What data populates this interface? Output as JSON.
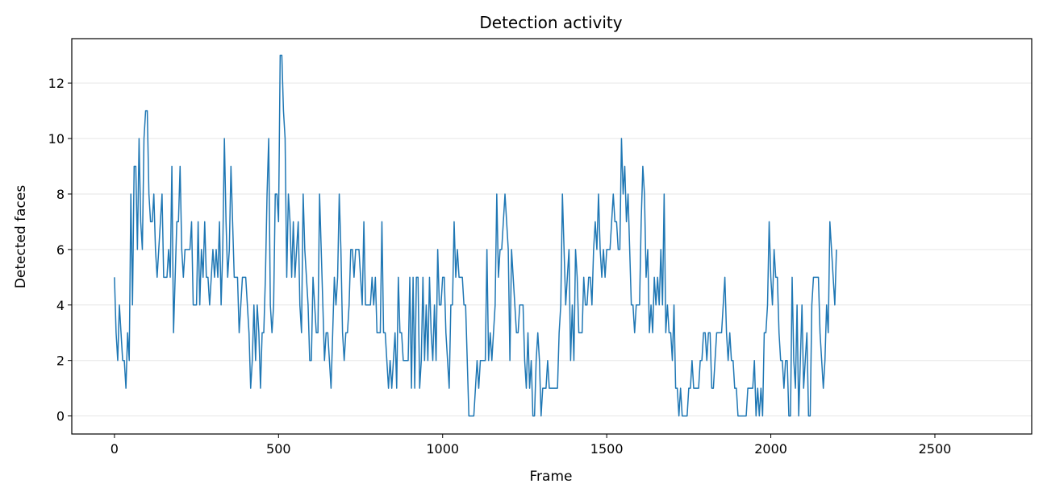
{
  "chart_data": {
    "type": "line",
    "title": "Detection activity",
    "xlabel": "Frame",
    "ylabel": "Detected faces",
    "xlim": [
      -130,
      2795
    ],
    "ylim": [
      -0.65,
      13.6
    ],
    "xticks": [
      0,
      500,
      1000,
      1500,
      2000,
      2500
    ],
    "yticks": [
      0,
      2,
      4,
      6,
      8,
      10,
      12
    ],
    "grid": "horizontal",
    "line_color": "#1f77b4",
    "series": [
      {
        "x_start": 0,
        "x_step": 5,
        "values": [
          5,
          3,
          2,
          4,
          3,
          2,
          2,
          1,
          3,
          2,
          8,
          4,
          9,
          9,
          6,
          10,
          7,
          6,
          10,
          11,
          11,
          8,
          7,
          7,
          8,
          6,
          5,
          6,
          7,
          8,
          5,
          5,
          5,
          6,
          5,
          9,
          3,
          5,
          7,
          7,
          9,
          6,
          5,
          6,
          6,
          6,
          6,
          7,
          4,
          4,
          4,
          7,
          4,
          6,
          5,
          7,
          5,
          5,
          4,
          5,
          6,
          5,
          6,
          5,
          7,
          4,
          6,
          10,
          7,
          5,
          6,
          9,
          7,
          5,
          5,
          5,
          3,
          4,
          5,
          5,
          5,
          4,
          3,
          1,
          2,
          4,
          2,
          4,
          3,
          1,
          3,
          3,
          5,
          8,
          10,
          4,
          3,
          4,
          8,
          8,
          7,
          13,
          13,
          11,
          10,
          5,
          8,
          7,
          5,
          7,
          5,
          6,
          7,
          4,
          3,
          8,
          6,
          5,
          4,
          2,
          2,
          5,
          4,
          3,
          3,
          8,
          6,
          4,
          2,
          3,
          3,
          2,
          1,
          3,
          5,
          4,
          5,
          8,
          6,
          3,
          2,
          3,
          3,
          4,
          6,
          6,
          5,
          6,
          6,
          6,
          5,
          4,
          7,
          4,
          4,
          4,
          4,
          5,
          4,
          5,
          3,
          3,
          3,
          7,
          3,
          3,
          2,
          1,
          2,
          1,
          2,
          3,
          1,
          5,
          3,
          3,
          2,
          2,
          2,
          2,
          5,
          1,
          5,
          1,
          5,
          5,
          1,
          2,
          5,
          2,
          4,
          2,
          5,
          3,
          2,
          4,
          2,
          6,
          4,
          4,
          5,
          5,
          3,
          2,
          1,
          4,
          4,
          7,
          5,
          6,
          5,
          5,
          5,
          4,
          4,
          2,
          0,
          0,
          0,
          0,
          1,
          2,
          1,
          2,
          2,
          2,
          2,
          6,
          2,
          3,
          2,
          3,
          4,
          8,
          5,
          6,
          6,
          7,
          8,
          7,
          6,
          2,
          6,
          5,
          4,
          3,
          3,
          4,
          4,
          4,
          2,
          1,
          3,
          1,
          2,
          0,
          0,
          2,
          3,
          2,
          0,
          1,
          1,
          1,
          2,
          1,
          1,
          1,
          1,
          1,
          1,
          3,
          4,
          8,
          6,
          4,
          5,
          6,
          2,
          4,
          2,
          6,
          5,
          3,
          3,
          3,
          5,
          4,
          4,
          5,
          5,
          4,
          6,
          7,
          6,
          8,
          6,
          5,
          6,
          5,
          6,
          6,
          6,
          7,
          8,
          7,
          7,
          6,
          6,
          10,
          8,
          9,
          7,
          8,
          6,
          4,
          4,
          3,
          4,
          4,
          4,
          7,
          9,
          8,
          5,
          6,
          3,
          4,
          3,
          5,
          4,
          5,
          4,
          6,
          4,
          8,
          3,
          4,
          3,
          3,
          2,
          4,
          1,
          1,
          0,
          1,
          0,
          0,
          0,
          0,
          1,
          1,
          2,
          1,
          1,
          1,
          1,
          2,
          2,
          3,
          3,
          2,
          3,
          3,
          1,
          1,
          2,
          3,
          3,
          3,
          3,
          4,
          5,
          3,
          2,
          3,
          2,
          2,
          1,
          1,
          0,
          0,
          0,
          0,
          0,
          0,
          1,
          1,
          1,
          1,
          2,
          0,
          1,
          0,
          1,
          0,
          3,
          3,
          4,
          7,
          5,
          4,
          6,
          5,
          5,
          3,
          2,
          2,
          1,
          2,
          2,
          0,
          0,
          5,
          2,
          1,
          4,
          0,
          2,
          4,
          1,
          2,
          3,
          0,
          0,
          4,
          5,
          5,
          5,
          5,
          3,
          2,
          1,
          2,
          4,
          3,
          7,
          6,
          5,
          4,
          6
        ]
      }
    ]
  }
}
